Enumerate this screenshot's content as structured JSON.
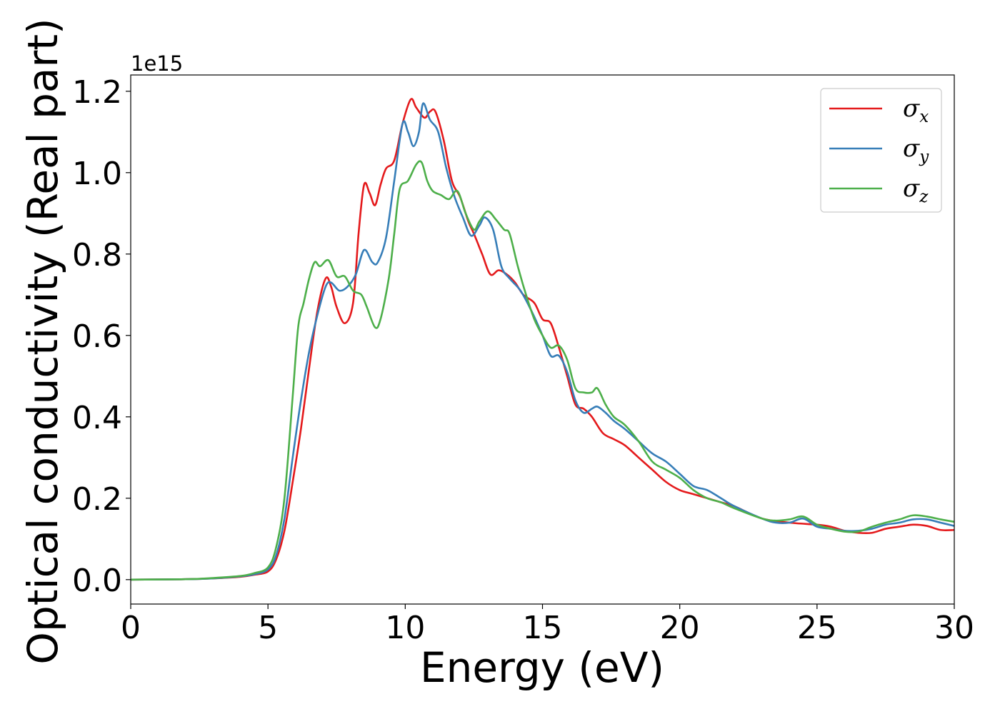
{
  "chart_data": {
    "type": "line",
    "title": "",
    "xlabel": "Energy (eV)",
    "ylabel": "Optical conductivity (Real part)",
    "y_offset_label": "1e15",
    "xlim": [
      0,
      30
    ],
    "ylim": [
      -0.06,
      1.24
    ],
    "x_ticks": [
      0,
      5,
      10,
      15,
      20,
      25,
      30
    ],
    "x_tick_labels": [
      "0",
      "5",
      "10",
      "15",
      "20",
      "25",
      "30"
    ],
    "y_ticks": [
      0.0,
      0.2,
      0.4,
      0.6,
      0.8,
      1.0,
      1.2
    ],
    "y_tick_labels": [
      "0.0",
      "0.2",
      "0.4",
      "0.6",
      "0.8",
      "1.0",
      "1.2"
    ],
    "grid": false,
    "legend_position": "top-right",
    "series": [
      {
        "name": "σx",
        "name_base": "σ",
        "name_sub": "x",
        "color": "#e41a1c",
        "points": [
          [
            0,
            0
          ],
          [
            2,
            0.001
          ],
          [
            3,
            0.003
          ],
          [
            4,
            0.007
          ],
          [
            4.5,
            0.012
          ],
          [
            5,
            0.02
          ],
          [
            5.3,
            0.05
          ],
          [
            5.6,
            0.12
          ],
          [
            5.9,
            0.24
          ],
          [
            6.2,
            0.37
          ],
          [
            6.5,
            0.52
          ],
          [
            6.8,
            0.66
          ],
          [
            7.1,
            0.74
          ],
          [
            7.3,
            0.72
          ],
          [
            7.5,
            0.67
          ],
          [
            7.8,
            0.63
          ],
          [
            8.1,
            0.68
          ],
          [
            8.3,
            0.85
          ],
          [
            8.5,
            0.97
          ],
          [
            8.7,
            0.95
          ],
          [
            8.9,
            0.92
          ],
          [
            9.1,
            0.97
          ],
          [
            9.3,
            1.01
          ],
          [
            9.6,
            1.03
          ],
          [
            9.9,
            1.12
          ],
          [
            10.2,
            1.18
          ],
          [
            10.4,
            1.16
          ],
          [
            10.7,
            1.135
          ],
          [
            10.9,
            1.15
          ],
          [
            11.1,
            1.15
          ],
          [
            11.4,
            1.08
          ],
          [
            11.7,
            0.98
          ],
          [
            12.0,
            0.94
          ],
          [
            12.3,
            0.88
          ],
          [
            12.5,
            0.85
          ],
          [
            12.8,
            0.8
          ],
          [
            13.1,
            0.75
          ],
          [
            13.4,
            0.76
          ],
          [
            13.7,
            0.75
          ],
          [
            14.0,
            0.73
          ],
          [
            14.3,
            0.7
          ],
          [
            14.7,
            0.68
          ],
          [
            15.0,
            0.64
          ],
          [
            15.3,
            0.63
          ],
          [
            15.6,
            0.57
          ],
          [
            15.9,
            0.5
          ],
          [
            16.2,
            0.43
          ],
          [
            16.5,
            0.42
          ],
          [
            16.8,
            0.4
          ],
          [
            17.2,
            0.36
          ],
          [
            17.6,
            0.345
          ],
          [
            18.0,
            0.33
          ],
          [
            18.5,
            0.3
          ],
          [
            19.0,
            0.27
          ],
          [
            19.5,
            0.24
          ],
          [
            20.0,
            0.22
          ],
          [
            20.5,
            0.21
          ],
          [
            21.0,
            0.2
          ],
          [
            21.5,
            0.19
          ],
          [
            22.0,
            0.18
          ],
          [
            23.0,
            0.15
          ],
          [
            24.0,
            0.14
          ],
          [
            25.0,
            0.135
          ],
          [
            25.5,
            0.13
          ],
          [
            26.0,
            0.12
          ],
          [
            26.5,
            0.115
          ],
          [
            27.0,
            0.115
          ],
          [
            27.5,
            0.125
          ],
          [
            28.0,
            0.13
          ],
          [
            28.5,
            0.135
          ],
          [
            29.0,
            0.132
          ],
          [
            29.5,
            0.122
          ],
          [
            30.0,
            0.122
          ]
        ]
      },
      {
        "name": "σy",
        "name_base": "σ",
        "name_sub": "y",
        "color": "#377eb8",
        "points": [
          [
            0,
            0
          ],
          [
            2,
            0.001
          ],
          [
            3,
            0.003
          ],
          [
            4,
            0.008
          ],
          [
            4.5,
            0.013
          ],
          [
            5,
            0.025
          ],
          [
            5.3,
            0.06
          ],
          [
            5.6,
            0.15
          ],
          [
            5.9,
            0.3
          ],
          [
            6.2,
            0.44
          ],
          [
            6.5,
            0.56
          ],
          [
            6.8,
            0.65
          ],
          [
            7.1,
            0.72
          ],
          [
            7.3,
            0.73
          ],
          [
            7.6,
            0.71
          ],
          [
            7.9,
            0.72
          ],
          [
            8.2,
            0.75
          ],
          [
            8.5,
            0.81
          ],
          [
            8.8,
            0.78
          ],
          [
            9.0,
            0.78
          ],
          [
            9.3,
            0.84
          ],
          [
            9.6,
            0.98
          ],
          [
            9.9,
            1.12
          ],
          [
            10.1,
            1.1
          ],
          [
            10.3,
            1.065
          ],
          [
            10.5,
            1.1
          ],
          [
            10.65,
            1.17
          ],
          [
            10.9,
            1.13
          ],
          [
            11.2,
            1.1
          ],
          [
            11.5,
            1.01
          ],
          [
            11.8,
            0.94
          ],
          [
            12.1,
            0.89
          ],
          [
            12.4,
            0.845
          ],
          [
            12.7,
            0.87
          ],
          [
            12.9,
            0.89
          ],
          [
            13.2,
            0.86
          ],
          [
            13.5,
            0.77
          ],
          [
            13.8,
            0.74
          ],
          [
            14.2,
            0.71
          ],
          [
            14.6,
            0.66
          ],
          [
            15.0,
            0.6
          ],
          [
            15.3,
            0.55
          ],
          [
            15.6,
            0.55
          ],
          [
            15.9,
            0.51
          ],
          [
            16.2,
            0.44
          ],
          [
            16.5,
            0.41
          ],
          [
            16.8,
            0.42
          ],
          [
            17.0,
            0.425
          ],
          [
            17.3,
            0.41
          ],
          [
            17.6,
            0.39
          ],
          [
            18.0,
            0.37
          ],
          [
            18.5,
            0.34
          ],
          [
            19.0,
            0.31
          ],
          [
            19.5,
            0.29
          ],
          [
            20.0,
            0.26
          ],
          [
            20.5,
            0.23
          ],
          [
            21.0,
            0.22
          ],
          [
            21.5,
            0.2
          ],
          [
            22.0,
            0.18
          ],
          [
            23.0,
            0.15
          ],
          [
            23.5,
            0.14
          ],
          [
            24.0,
            0.14
          ],
          [
            24.5,
            0.15
          ],
          [
            25.0,
            0.13
          ],
          [
            25.5,
            0.125
          ],
          [
            26.0,
            0.12
          ],
          [
            26.5,
            0.12
          ],
          [
            27.0,
            0.125
          ],
          [
            27.5,
            0.135
          ],
          [
            28.0,
            0.14
          ],
          [
            28.5,
            0.148
          ],
          [
            29.0,
            0.148
          ],
          [
            29.5,
            0.14
          ],
          [
            30.0,
            0.132
          ]
        ]
      },
      {
        "name": "σz",
        "name_base": "σ",
        "name_sub": "z",
        "color": "#4daf4a",
        "points": [
          [
            0,
            0
          ],
          [
            2,
            0.001
          ],
          [
            3,
            0.004
          ],
          [
            4,
            0.009
          ],
          [
            4.5,
            0.016
          ],
          [
            5,
            0.03
          ],
          [
            5.3,
            0.08
          ],
          [
            5.6,
            0.2
          ],
          [
            5.9,
            0.45
          ],
          [
            6.1,
            0.62
          ],
          [
            6.3,
            0.68
          ],
          [
            6.5,
            0.74
          ],
          [
            6.7,
            0.78
          ],
          [
            6.9,
            0.77
          ],
          [
            7.2,
            0.785
          ],
          [
            7.5,
            0.745
          ],
          [
            7.8,
            0.745
          ],
          [
            8.1,
            0.71
          ],
          [
            8.4,
            0.7
          ],
          [
            8.6,
            0.67
          ],
          [
            8.9,
            0.62
          ],
          [
            9.1,
            0.64
          ],
          [
            9.4,
            0.74
          ],
          [
            9.6,
            0.85
          ],
          [
            9.8,
            0.96
          ],
          [
            10.1,
            0.98
          ],
          [
            10.4,
            1.02
          ],
          [
            10.6,
            1.025
          ],
          [
            10.8,
            0.98
          ],
          [
            11.0,
            0.955
          ],
          [
            11.3,
            0.945
          ],
          [
            11.6,
            0.935
          ],
          [
            11.9,
            0.955
          ],
          [
            12.2,
            0.9
          ],
          [
            12.5,
            0.86
          ],
          [
            12.7,
            0.88
          ],
          [
            13.0,
            0.905
          ],
          [
            13.3,
            0.885
          ],
          [
            13.6,
            0.86
          ],
          [
            13.8,
            0.85
          ],
          [
            14.1,
            0.77
          ],
          [
            14.4,
            0.7
          ],
          [
            14.7,
            0.64
          ],
          [
            15.0,
            0.6
          ],
          [
            15.3,
            0.57
          ],
          [
            15.6,
            0.575
          ],
          [
            15.9,
            0.54
          ],
          [
            16.2,
            0.47
          ],
          [
            16.5,
            0.46
          ],
          [
            16.8,
            0.46
          ],
          [
            17.0,
            0.47
          ],
          [
            17.3,
            0.43
          ],
          [
            17.6,
            0.4
          ],
          [
            18.0,
            0.38
          ],
          [
            18.5,
            0.34
          ],
          [
            19.0,
            0.29
          ],
          [
            19.5,
            0.27
          ],
          [
            20.0,
            0.25
          ],
          [
            20.5,
            0.22
          ],
          [
            21.0,
            0.2
          ],
          [
            21.5,
            0.19
          ],
          [
            22.0,
            0.175
          ],
          [
            23.0,
            0.15
          ],
          [
            23.5,
            0.145
          ],
          [
            24.0,
            0.148
          ],
          [
            24.5,
            0.155
          ],
          [
            25.0,
            0.135
          ],
          [
            25.5,
            0.125
          ],
          [
            26.0,
            0.118
          ],
          [
            26.5,
            0.118
          ],
          [
            27.0,
            0.13
          ],
          [
            27.5,
            0.14
          ],
          [
            28.0,
            0.148
          ],
          [
            28.5,
            0.158
          ],
          [
            29.0,
            0.155
          ],
          [
            29.5,
            0.148
          ],
          [
            30.0,
            0.142
          ]
        ]
      }
    ]
  }
}
